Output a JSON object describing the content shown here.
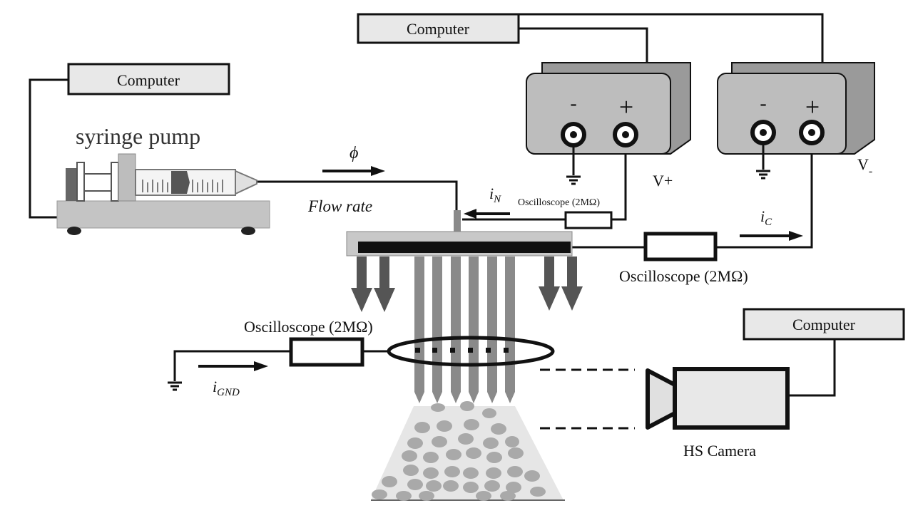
{
  "labels": {
    "computer_top": "Computer",
    "computer_left": "Computer",
    "computer_right": "Computer",
    "syringe_pump": "syringe pump",
    "phi": "ϕ",
    "flow_rate": "Flow rate",
    "i_n_main": "i",
    "i_n_sub": "N",
    "osc_small": "Oscilloscope (2MΩ)",
    "osc_right": "Oscilloscope (2MΩ)",
    "osc_left": "Oscilloscope (2MΩ)",
    "i_c_main": "i",
    "i_c_sub": "C",
    "i_gnd_main": "i",
    "i_gnd_sub": "GND",
    "v_plus": "V+",
    "v_minus_main": "V",
    "v_minus_sub": "-",
    "psu_minus": "-",
    "psu_plus": "+",
    "hs_camera": "HS Camera"
  },
  "colors": {
    "line": "#111111",
    "box_fill": "#e8e8e8",
    "psu_fill": "#bdbdbd",
    "psu_dark": "#9a9a9a",
    "needle": "#8a8a8a",
    "droplet": "#a9a9a9",
    "spray_fill": "#e6e6e6"
  }
}
